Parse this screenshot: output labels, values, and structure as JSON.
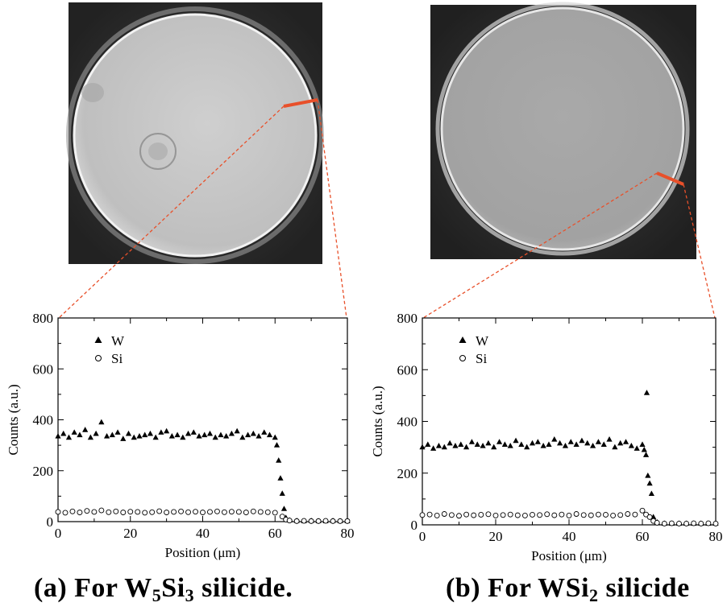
{
  "captions": {
    "a": {
      "prefix": "(a)  For W",
      "sub1": "5",
      "mid": "Si",
      "sub2": "3",
      "suffix": " silicide."
    },
    "b": {
      "prefix": "(b) For WSi",
      "sub1": "2",
      "suffix": " silicide"
    }
  },
  "colors": {
    "line_marker": "#e8502a",
    "dashes": "#e8502a",
    "markers": "#000000"
  },
  "chart_data": [
    {
      "type": "scatter",
      "panel": "a",
      "xlabel": "Position (μm)",
      "ylabel": "Counts (a.u.)",
      "xlim": [
        0,
        80
      ],
      "ylim": [
        0,
        800
      ],
      "xticks": [
        0,
        20,
        40,
        60,
        80
      ],
      "yticks": [
        0,
        200,
        400,
        600,
        800
      ],
      "legend": "top-left",
      "series": [
        {
          "name": "W",
          "marker": "filled-triangle",
          "x": [
            0,
            1.5,
            3,
            4.5,
            6,
            7.5,
            9,
            10.5,
            12,
            13.5,
            15,
            16.5,
            18,
            19.5,
            21,
            22.5,
            24,
            25.5,
            27,
            28.5,
            30,
            31.5,
            33,
            34.5,
            36,
            37.5,
            39,
            40.5,
            42,
            43.5,
            45,
            46.5,
            48,
            49.5,
            51,
            52.5,
            54,
            55.5,
            57,
            58.5,
            60,
            60.5,
            61,
            61.5,
            62,
            62.5,
            63,
            64,
            66,
            68,
            70,
            72,
            74,
            76,
            78,
            80
          ],
          "y": [
            335,
            345,
            330,
            350,
            340,
            360,
            330,
            345,
            390,
            335,
            340,
            350,
            325,
            345,
            330,
            335,
            340,
            345,
            330,
            350,
            355,
            335,
            340,
            330,
            345,
            350,
            335,
            340,
            345,
            330,
            340,
            335,
            345,
            355,
            330,
            340,
            345,
            335,
            350,
            340,
            330,
            300,
            240,
            170,
            110,
            50,
            15,
            5,
            3,
            2,
            3,
            2,
            2,
            3,
            2,
            2
          ]
        },
        {
          "name": "Si",
          "marker": "open-circle",
          "x": [
            0,
            2,
            4,
            6,
            8,
            10,
            12,
            14,
            16,
            18,
            20,
            22,
            24,
            26,
            28,
            30,
            32,
            34,
            36,
            38,
            40,
            42,
            44,
            46,
            48,
            50,
            52,
            54,
            56,
            58,
            60,
            62,
            63,
            64,
            66,
            68,
            70,
            72,
            74,
            76,
            78,
            80
          ],
          "y": [
            38,
            35,
            40,
            36,
            42,
            38,
            44,
            37,
            40,
            36,
            39,
            38,
            35,
            37,
            41,
            36,
            38,
            40,
            37,
            39,
            36,
            38,
            40,
            37,
            39,
            38,
            36,
            40,
            38,
            37,
            35,
            20,
            8,
            4,
            2,
            3,
            2,
            2,
            3,
            2,
            2,
            2
          ]
        }
      ]
    },
    {
      "type": "scatter",
      "panel": "b",
      "xlabel": "Position (μm)",
      "ylabel": "Counts (a.u.)",
      "xlim": [
        0,
        80
      ],
      "ylim": [
        0,
        800
      ],
      "xticks": [
        0,
        20,
        40,
        60,
        80
      ],
      "yticks": [
        0,
        200,
        400,
        600,
        800
      ],
      "legend": "top-left",
      "series": [
        {
          "name": "W",
          "marker": "filled-triangle",
          "x": [
            0,
            1.5,
            3,
            4.5,
            6,
            7.5,
            9,
            10.5,
            12,
            13.5,
            15,
            16.5,
            18,
            19.5,
            21,
            22.5,
            24,
            25.5,
            27,
            28.5,
            30,
            31.5,
            33,
            34.5,
            36,
            37.5,
            39,
            40.5,
            42,
            43.5,
            45,
            46.5,
            48,
            49.5,
            51,
            52.5,
            54,
            55.5,
            57,
            58.5,
            60,
            60.5,
            61,
            61.2,
            61.5,
            62,
            62.5,
            63,
            64,
            66,
            68,
            70,
            72,
            74,
            76,
            78,
            80
          ],
          "y": [
            300,
            310,
            295,
            305,
            300,
            315,
            305,
            310,
            300,
            320,
            310,
            305,
            315,
            300,
            320,
            310,
            305,
            325,
            310,
            300,
            315,
            320,
            305,
            310,
            330,
            315,
            305,
            320,
            310,
            325,
            315,
            305,
            320,
            310,
            330,
            300,
            315,
            320,
            305,
            295,
            310,
            290,
            270,
            510,
            190,
            160,
            120,
            30,
            10,
            5,
            5,
            5,
            5,
            5,
            5,
            5,
            5
          ]
        },
        {
          "name": "Si",
          "marker": "open-circle",
          "x": [
            0,
            2,
            4,
            6,
            8,
            10,
            12,
            14,
            16,
            18,
            20,
            22,
            24,
            26,
            28,
            30,
            32,
            34,
            36,
            38,
            40,
            42,
            44,
            46,
            48,
            50,
            52,
            54,
            56,
            58,
            60,
            61,
            62,
            63,
            64,
            66,
            68,
            70,
            72,
            74,
            76,
            78,
            80
          ],
          "y": [
            38,
            40,
            36,
            42,
            38,
            35,
            40,
            37,
            39,
            41,
            36,
            38,
            40,
            37,
            36,
            39,
            38,
            41,
            37,
            40,
            36,
            42,
            38,
            37,
            40,
            39,
            36,
            38,
            42,
            40,
            55,
            40,
            30,
            15,
            8,
            5,
            6,
            5,
            5,
            6,
            5,
            6,
            5
          ]
        }
      ]
    }
  ]
}
